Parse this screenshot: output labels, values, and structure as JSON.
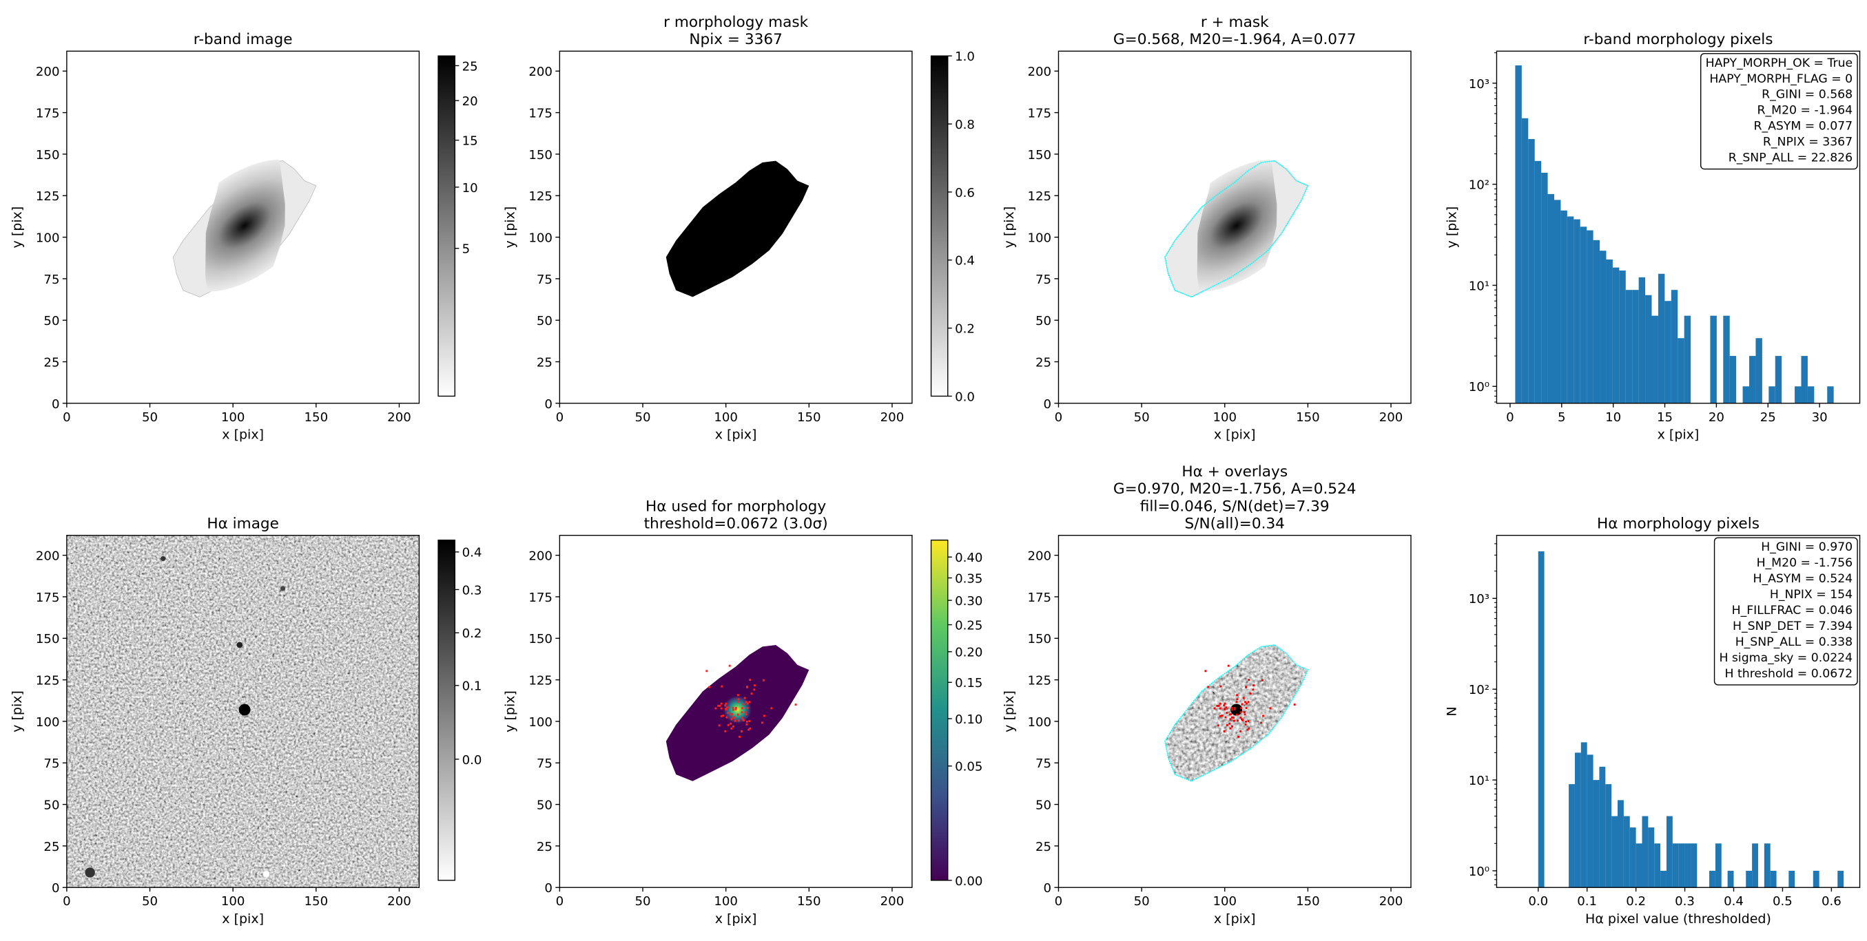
{
  "chart_data": [
    {
      "type": "image",
      "title": "r-band image",
      "xlabel": "x [pix]",
      "ylabel": "y [pix]",
      "xlim": [
        0,
        212
      ],
      "ylim": [
        0,
        212
      ],
      "xticks": [
        0,
        50,
        100,
        150,
        200
      ],
      "yticks": [
        0,
        25,
        50,
        75,
        100,
        125,
        150,
        175,
        200
      ],
      "colorbar": {
        "lim": [
          0,
          26.5
        ],
        "stretch": "sqrt",
        "cmap": "gray_r",
        "ticks": [
          5,
          10,
          15,
          20,
          25
        ]
      }
    },
    {
      "type": "image",
      "title": [
        "r morphology mask",
        "Npix = 3367"
      ],
      "xlabel": "x [pix]",
      "ylabel": "y [pix]",
      "xlim": [
        0,
        212
      ],
      "ylim": [
        0,
        212
      ],
      "xticks": [
        0,
        50,
        100,
        150,
        200
      ],
      "yticks": [
        0,
        25,
        50,
        75,
        100,
        125,
        150,
        175,
        200
      ],
      "colorbar": {
        "lim": [
          0,
          1
        ],
        "stretch": "linear",
        "cmap": "gray_r",
        "ticks": [
          {
            "value": 0,
            "label": "0.0"
          },
          0.2,
          0.4,
          0.6,
          0.8,
          {
            "value": 1,
            "label": "1.0"
          }
        ]
      }
    },
    {
      "type": "image",
      "title": [
        "r + mask",
        "G=0.568, M20=-1.964, A=0.077"
      ],
      "xlabel": "x [pix]",
      "ylabel": "y [pix]",
      "xlim": [
        0,
        212
      ],
      "ylim": [
        0,
        212
      ],
      "xticks": [
        0,
        50,
        100,
        150,
        200
      ],
      "yticks": [
        0,
        25,
        50,
        75,
        100,
        125,
        150,
        175,
        200
      ],
      "contour_color": "#00ffff"
    },
    {
      "type": "histogram",
      "title": "r-band morphology pixels",
      "xlabel": "x [pix]",
      "ylabel": "y [pix]",
      "color": "#1f77b4",
      "log_y": true,
      "xlim": [
        -1.3,
        33.9
      ],
      "ylim": [
        0.68,
        2075
      ],
      "xticks": [
        0,
        5,
        10,
        15,
        20,
        25,
        30
      ],
      "yticks": [
        {
          "value": 1,
          "label": "10⁰"
        },
        {
          "value": 10,
          "label": "10¹"
        },
        {
          "value": 100,
          "label": "10²"
        },
        {
          "value": 1000,
          "label": "10³"
        }
      ],
      "bins": [
        0.5,
        1.13,
        1.76,
        2.39,
        3.02,
        3.65,
        4.28,
        4.91,
        5.54,
        6.17,
        6.8,
        7.43,
        8.06,
        8.69,
        9.32,
        9.95,
        10.58,
        11.21,
        11.84,
        12.47,
        13.1,
        13.73,
        14.36,
        14.99,
        15.62,
        16.25,
        16.88,
        17.51,
        18.14,
        18.77,
        19.4,
        20.03,
        20.66,
        21.29,
        21.92,
        22.55,
        23.18,
        23.81,
        24.44,
        25.07,
        25.7,
        26.33,
        26.96,
        27.59,
        28.22,
        28.85,
        29.48,
        30.11,
        30.74,
        31.37,
        32.0
      ],
      "counts": [
        1500,
        450,
        280,
        170,
        130,
        80,
        70,
        55,
        48,
        45,
        38,
        35,
        28,
        22,
        18,
        15,
        14,
        9,
        9,
        12,
        8,
        5,
        13,
        7,
        9,
        3,
        5,
        0,
        0,
        0,
        5,
        0,
        5,
        2,
        0,
        1,
        2,
        3,
        0,
        1,
        2,
        0,
        0,
        1,
        2,
        1,
        0,
        0,
        1,
        0
      ],
      "annotation": [
        "HAPY_MORPH_OK = True",
        "HAPY_MORPH_FLAG = 0",
        "R_GINI = 0.568",
        "R_M20 = -1.964",
        "R_ASYM = 0.077",
        "R_NPIX = 3367",
        "R_SNP_ALL = 22.826"
      ]
    },
    {
      "type": "image",
      "title": "Hα image",
      "xlabel": "x [pix]",
      "ylabel": "y [pix]",
      "xlim": [
        0,
        212
      ],
      "ylim": [
        0,
        212
      ],
      "xticks": [
        0,
        50,
        100,
        150,
        200
      ],
      "yticks": [
        0,
        25,
        50,
        75,
        100,
        125,
        150,
        175,
        200
      ],
      "colorbar": {
        "lim": [
          -0.063,
          0.434
        ],
        "stretch": "sqrt",
        "cmap": "gray_r",
        "ticks": [
          {
            "value": 0,
            "label": "0.0"
          },
          0.1,
          0.2,
          0.3,
          0.4
        ]
      }
    },
    {
      "type": "image",
      "title": [
        "Hα used for morphology",
        "threshold=0.0672 (3.0σ)"
      ],
      "xlabel": "x [pix]",
      "ylabel": "y [pix]",
      "xlim": [
        0,
        212
      ],
      "ylim": [
        0,
        212
      ],
      "xticks": [
        0,
        50,
        100,
        150,
        200
      ],
      "yticks": [
        0,
        25,
        50,
        75,
        100,
        125,
        150,
        175,
        200
      ],
      "colorbar": {
        "lim": [
          0,
          0.443
        ],
        "stretch": "sqrt",
        "cmap": "viridis",
        "ticks": [
          {
            "value": 0,
            "label": "0.00"
          },
          0.05,
          {
            "value": 0.1,
            "label": "0.10"
          },
          0.15,
          {
            "value": 0.2,
            "label": "0.20"
          },
          0.25,
          {
            "value": 0.3,
            "label": "0.30"
          },
          0.35,
          {
            "value": 0.4,
            "label": "0.40"
          }
        ]
      }
    },
    {
      "type": "image",
      "title": [
        "Hα + overlays",
        "G=0.970, M20=-1.756, A=0.524",
        "fill=0.046, S/N(det)=7.39",
        "S/N(all)=0.34"
      ],
      "xlabel": "x [pix]",
      "ylabel": "y [pix]",
      "xlim": [
        0,
        212
      ],
      "ylim": [
        0,
        212
      ],
      "xticks": [
        0,
        50,
        100,
        150,
        200
      ],
      "yticks": [
        0,
        25,
        50,
        75,
        100,
        125,
        150,
        175,
        200
      ],
      "contour_color": "#00ffff",
      "point_color": "#ff0000"
    },
    {
      "type": "histogram",
      "title": "Hα morphology pixels",
      "xlabel": "Hα pixel value (thresholded)",
      "ylabel": "N",
      "color": "#1f77b4",
      "log_y": true,
      "xlim": [
        -0.085,
        0.658
      ],
      "ylim": [
        0.655,
        4950
      ],
      "xticks": [
        {
          "value": 0,
          "label": "0.0"
        },
        0.1,
        0.2,
        0.3,
        0.4,
        0.5,
        0.6
      ],
      "yticks": [
        {
          "value": 1,
          "label": "10⁰"
        },
        {
          "value": 10,
          "label": "10¹"
        },
        {
          "value": 100,
          "label": "10²"
        },
        {
          "value": 1000,
          "label": "10³"
        }
      ],
      "bins": [
        0,
        0.0125,
        0.025,
        0.0375,
        0.05,
        0.0625,
        0.075,
        0.0875,
        0.1,
        0.1125,
        0.125,
        0.1375,
        0.15,
        0.1625,
        0.175,
        0.1875,
        0.2,
        0.2125,
        0.225,
        0.2375,
        0.25,
        0.2625,
        0.275,
        0.2875,
        0.3,
        0.3125,
        0.325,
        0.3375,
        0.35,
        0.3625,
        0.375,
        0.3875,
        0.4,
        0.4125,
        0.425,
        0.4375,
        0.45,
        0.4625,
        0.475,
        0.4875,
        0.5,
        0.5125,
        0.525,
        0.5375,
        0.55,
        0.5625,
        0.575,
        0.5875,
        0.6,
        0.6125,
        0.625
      ],
      "counts": [
        3300,
        0,
        0,
        0,
        0,
        9,
        20,
        26,
        19,
        10,
        14,
        9,
        4,
        6,
        4,
        3,
        2,
        4,
        3,
        2,
        1,
        4,
        2,
        2,
        2,
        2,
        0,
        0,
        1,
        2,
        0,
        1,
        0,
        0,
        1,
        2,
        0,
        2,
        1,
        0,
        0,
        1,
        0,
        0,
        0,
        1,
        0,
        0,
        0,
        1
      ],
      "annotation": [
        "H_GINI = 0.970",
        "H_M20 = -1.756",
        "H_ASYM = 0.524",
        "H_NPIX = 154",
        "H_FILLFRAC = 0.046",
        "H_SNP_DET = 7.394",
        "H_SNP_ALL = 0.338",
        "H sigma_sky = 0.0224",
        "H threshold = 0.0672"
      ]
    }
  ]
}
